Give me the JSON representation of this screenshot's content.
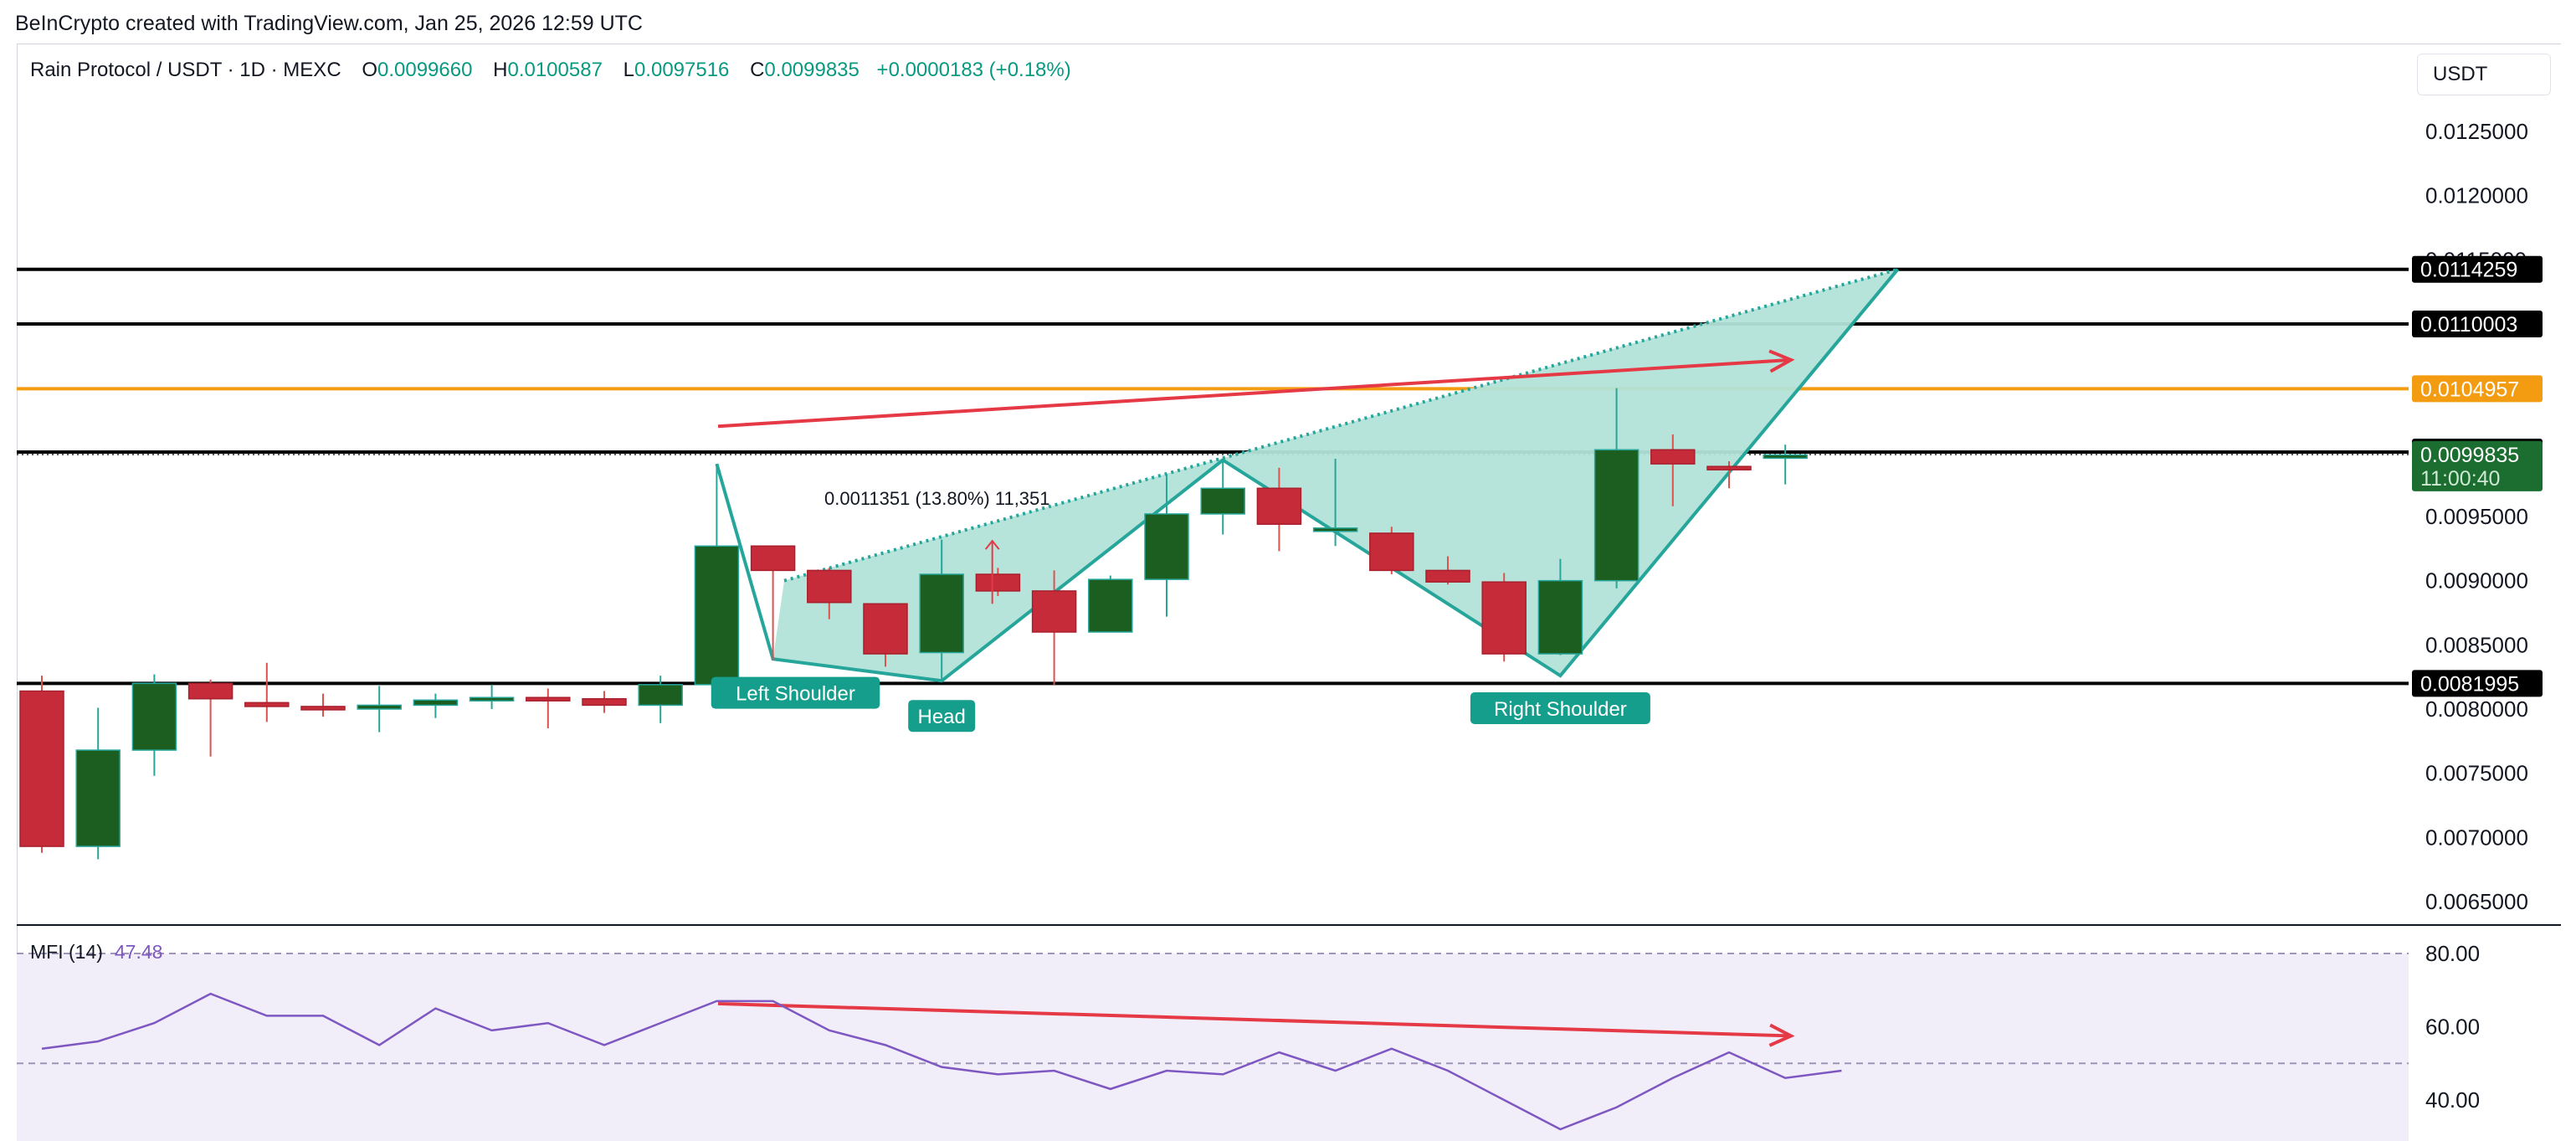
{
  "credit": "BeInCrypto created with TradingView.com, Jan 25, 2026 12:59 UTC",
  "symbol": {
    "title": "Rain Protocol / USDT · 1D · MEXC",
    "o_label": "O",
    "o": "0.0099660",
    "h_label": "H",
    "h": "0.0100587",
    "l_label": "L",
    "l": "0.0097516",
    "c_label": "C",
    "c": "0.0099835",
    "change": "+0.0000183 (+0.18%)"
  },
  "currency": "USDT",
  "colors": {
    "up": "#1b5e20",
    "down": "#c62b3a",
    "pattern": "#26a69a",
    "pattern_fill": "#b2e3d9",
    "arrow": "#e53946",
    "orange": "#f39c12",
    "mfi": "#7e57c2"
  },
  "chart_data": [
    {
      "type": "candlestick",
      "title": "Rain Protocol / USDT · 1D · MEXC",
      "ylim": [
        0.0063,
        0.0129
      ],
      "y_ticks": [
        "0.0125000",
        "0.0120000",
        "0.0115000",
        "0.0110000",
        "0.0105000",
        "0.0100000",
        "0.0095000",
        "0.0090000",
        "0.0085000",
        "0.0080000",
        "0.0075000",
        "0.0070000",
        "0.0065000"
      ],
      "candles": [
        {
          "o": 0.00814,
          "h": 0.00826,
          "l": 0.00688,
          "c": 0.00693
        },
        {
          "o": 0.00693,
          "h": 0.00801,
          "l": 0.00683,
          "c": 0.00768
        },
        {
          "o": 0.00768,
          "h": 0.00827,
          "l": 0.00748,
          "c": 0.0082
        },
        {
          "o": 0.0082,
          "h": 0.00823,
          "l": 0.00763,
          "c": 0.00808
        },
        {
          "o": 0.00805,
          "h": 0.00836,
          "l": 0.0079,
          "c": 0.00802
        },
        {
          "o": 0.00802,
          "h": 0.00812,
          "l": 0.00794,
          "c": 0.008
        },
        {
          "o": 0.008,
          "h": 0.00818,
          "l": 0.00782,
          "c": 0.00803
        },
        {
          "o": 0.00803,
          "h": 0.00812,
          "l": 0.00793,
          "c": 0.00807
        },
        {
          "o": 0.00807,
          "h": 0.00819,
          "l": 0.008,
          "c": 0.00809
        },
        {
          "o": 0.00809,
          "h": 0.00816,
          "l": 0.00785,
          "c": 0.00808
        },
        {
          "o": 0.00808,
          "h": 0.00814,
          "l": 0.00797,
          "c": 0.00803
        },
        {
          "o": 0.00803,
          "h": 0.00826,
          "l": 0.00789,
          "c": 0.00819
        },
        {
          "o": 0.00819,
          "h": 0.00991,
          "l": 0.00805,
          "c": 0.00927
        },
        {
          "o": 0.00927,
          "h": 0.00927,
          "l": 0.00838,
          "c": 0.00908
        },
        {
          "o": 0.00908,
          "h": 0.0091,
          "l": 0.0087,
          "c": 0.00883
        },
        {
          "o": 0.00882,
          "h": 0.00882,
          "l": 0.00833,
          "c": 0.00843
        },
        {
          "o": 0.00844,
          "h": 0.00932,
          "l": 0.00821,
          "c": 0.00905
        },
        {
          "o": 0.00905,
          "h": 0.0091,
          "l": 0.00888,
          "c": 0.00892
        },
        {
          "o": 0.00892,
          "h": 0.00908,
          "l": 0.00819,
          "c": 0.0086
        },
        {
          "o": 0.0086,
          "h": 0.00904,
          "l": 0.0086,
          "c": 0.00901
        },
        {
          "o": 0.00901,
          "h": 0.00983,
          "l": 0.00872,
          "c": 0.00952
        },
        {
          "o": 0.00952,
          "h": 0.00994,
          "l": 0.00936,
          "c": 0.00972
        },
        {
          "o": 0.00972,
          "h": 0.00988,
          "l": 0.00923,
          "c": 0.00944
        },
        {
          "o": 0.00941,
          "h": 0.00995,
          "l": 0.00927,
          "c": 0.00941
        },
        {
          "o": 0.00937,
          "h": 0.00942,
          "l": 0.00905,
          "c": 0.00908
        },
        {
          "o": 0.00908,
          "h": 0.00919,
          "l": 0.00897,
          "c": 0.00899
        },
        {
          "o": 0.00899,
          "h": 0.00906,
          "l": 0.00837,
          "c": 0.00843
        },
        {
          "o": 0.00843,
          "h": 0.00917,
          "l": 0.00842,
          "c": 0.009
        },
        {
          "o": 0.009,
          "h": 0.0105,
          "l": 0.00894,
          "c": 0.01002
        },
        {
          "o": 0.01002,
          "h": 0.01014,
          "l": 0.00958,
          "c": 0.00991
        },
        {
          "o": 0.00989,
          "h": 0.00993,
          "l": 0.00972,
          "c": 0.00987
        },
        {
          "o": 0.00997,
          "h": 0.01006,
          "l": 0.00975,
          "c": 0.00998
        }
      ],
      "levels": [
        {
          "value": 0.0114259,
          "label": "0.0114259",
          "color": "#000000"
        },
        {
          "value": 0.0110003,
          "label": "0.0110003",
          "color": "#000000"
        },
        {
          "value": 0.0104957,
          "label": "0.0104957",
          "color": "#f39c12"
        },
        {
          "value": 0.0100018,
          "label": "0.0100018",
          "color": "#000000"
        },
        {
          "value": 0.0081995,
          "label": "0.0081995",
          "color": "#000000"
        }
      ],
      "last_price": {
        "value": 0.0099835,
        "label": "0.0099835",
        "countdown": "11:00:40"
      },
      "measure_label": "0.0011351 (13.80%) 11,351",
      "pattern_labels": [
        "Left Shoulder",
        "Head",
        "Right Shoulder"
      ],
      "pattern_points": [
        {
          "bar": 12,
          "price": 0.00991
        },
        {
          "bar": 13,
          "price": 0.00839
        },
        {
          "bar": 16,
          "price": 0.00822
        },
        {
          "bar": 21,
          "price": 0.00994
        },
        {
          "bar": 27,
          "price": 0.00826
        },
        {
          "bar": 33,
          "price": 0.011426
        }
      ]
    },
    {
      "type": "line",
      "title": "MFI (14)",
      "current": "47.48",
      "ylim": [
        37,
        83
      ],
      "y_ticks": [
        "80.00",
        "60.00",
        "40.00"
      ],
      "bands": [
        80,
        50
      ],
      "values": [
        54,
        56,
        61,
        69,
        63,
        63,
        55,
        65,
        59,
        61,
        55,
        61,
        67,
        67,
        59,
        55,
        49,
        47,
        48,
        43,
        48,
        47,
        53,
        48,
        54,
        48,
        40,
        32,
        38,
        46,
        53,
        46,
        48
      ]
    }
  ]
}
